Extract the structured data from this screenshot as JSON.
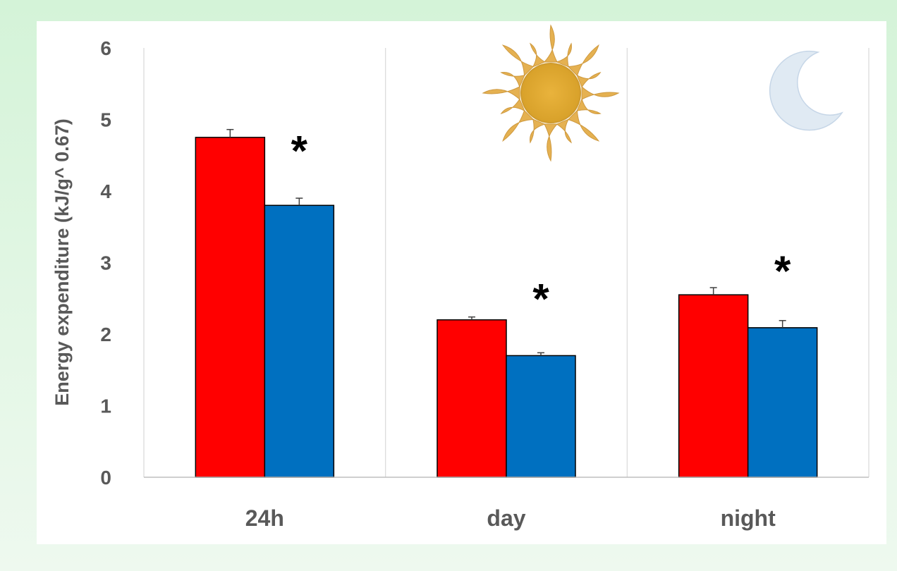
{
  "chart_data": {
    "type": "bar",
    "categories": [
      "24h",
      "day",
      "night"
    ],
    "series": [
      {
        "values": [
          4.75,
          2.2,
          2.55
        ],
        "errors": [
          0.11,
          0.04,
          0.1
        ],
        "color": "#ff0000"
      },
      {
        "values": [
          3.8,
          1.7,
          2.09
        ],
        "errors": [
          0.1,
          0.04,
          0.1
        ],
        "color": "#0070c0"
      }
    ],
    "ylabel": "Energy expenditure (kJ/g^ 0.67)",
    "ylim": [
      0,
      6
    ],
    "yticks": [
      "0",
      "1",
      "2",
      "3",
      "4",
      "5",
      "6"
    ],
    "significance": [
      "*",
      "*",
      "*"
    ],
    "grid": "vertical separators between categories",
    "decorations": {
      "day": "sun-icon",
      "night": "moon-icon"
    }
  }
}
